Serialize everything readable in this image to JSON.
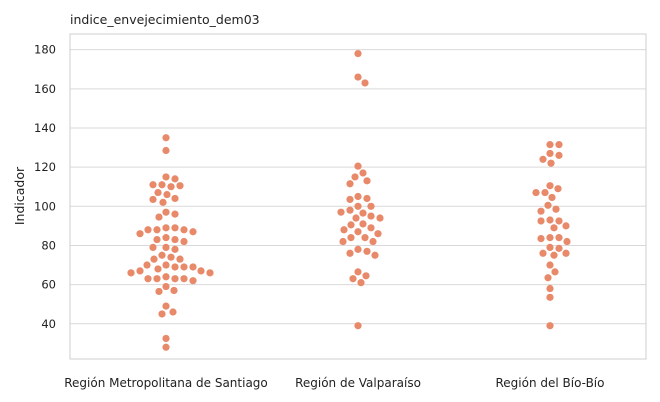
{
  "chart_data": {
    "type": "scatter",
    "subtype": "swarm",
    "title": "indice_envejecimiento_dem03",
    "xlabel": "",
    "ylabel": "Indicador",
    "categories": [
      "Región Metropolitana de Santiago",
      "Región de Valparaíso",
      "Región del Bío-Bío"
    ],
    "ylim": [
      22,
      188
    ],
    "yticks": [
      40,
      60,
      80,
      100,
      120,
      140,
      160,
      180
    ],
    "grid": "horizontal",
    "legend": "none",
    "point_color": "#E8896A",
    "series": [
      {
        "category": "Región Metropolitana de Santiago",
        "values": [
          135,
          128.5,
          115,
          114,
          111,
          111,
          110.5,
          110,
          107,
          106,
          104,
          103.5,
          102,
          97,
          96,
          94.5,
          89,
          89,
          88,
          88,
          88,
          87,
          86,
          84,
          83,
          83,
          82,
          79,
          79,
          78,
          75,
          74,
          73,
          73,
          70,
          70,
          69,
          69,
          69,
          68,
          67,
          67,
          66,
          66,
          64,
          63,
          63,
          63,
          63,
          62,
          59,
          57,
          56.5,
          49,
          46,
          45,
          32.5,
          28
        ]
      },
      {
        "category": "Región de Valparaíso",
        "values": [
          178,
          166,
          163,
          120.5,
          117,
          115,
          113,
          111.5,
          105,
          104,
          103.5,
          100,
          100,
          98,
          97,
          96.5,
          95,
          94,
          94,
          91,
          90.5,
          89,
          88,
          87,
          86,
          84,
          84,
          82,
          82,
          78,
          77,
          76,
          75,
          66.5,
          64.5,
          63,
          61,
          39
        ]
      },
      {
        "category": "Región del Bío-Bío",
        "values": [
          131.5,
          131.5,
          127,
          126,
          124,
          122,
          110.5,
          109,
          107,
          107,
          104.5,
          100.5,
          98.5,
          97.5,
          93,
          92.5,
          92.5,
          90,
          89,
          84,
          84,
          83.5,
          82,
          79,
          78.5,
          76,
          76,
          75,
          70,
          66.5,
          63.5,
          58,
          53.5,
          39
        ]
      }
    ]
  }
}
